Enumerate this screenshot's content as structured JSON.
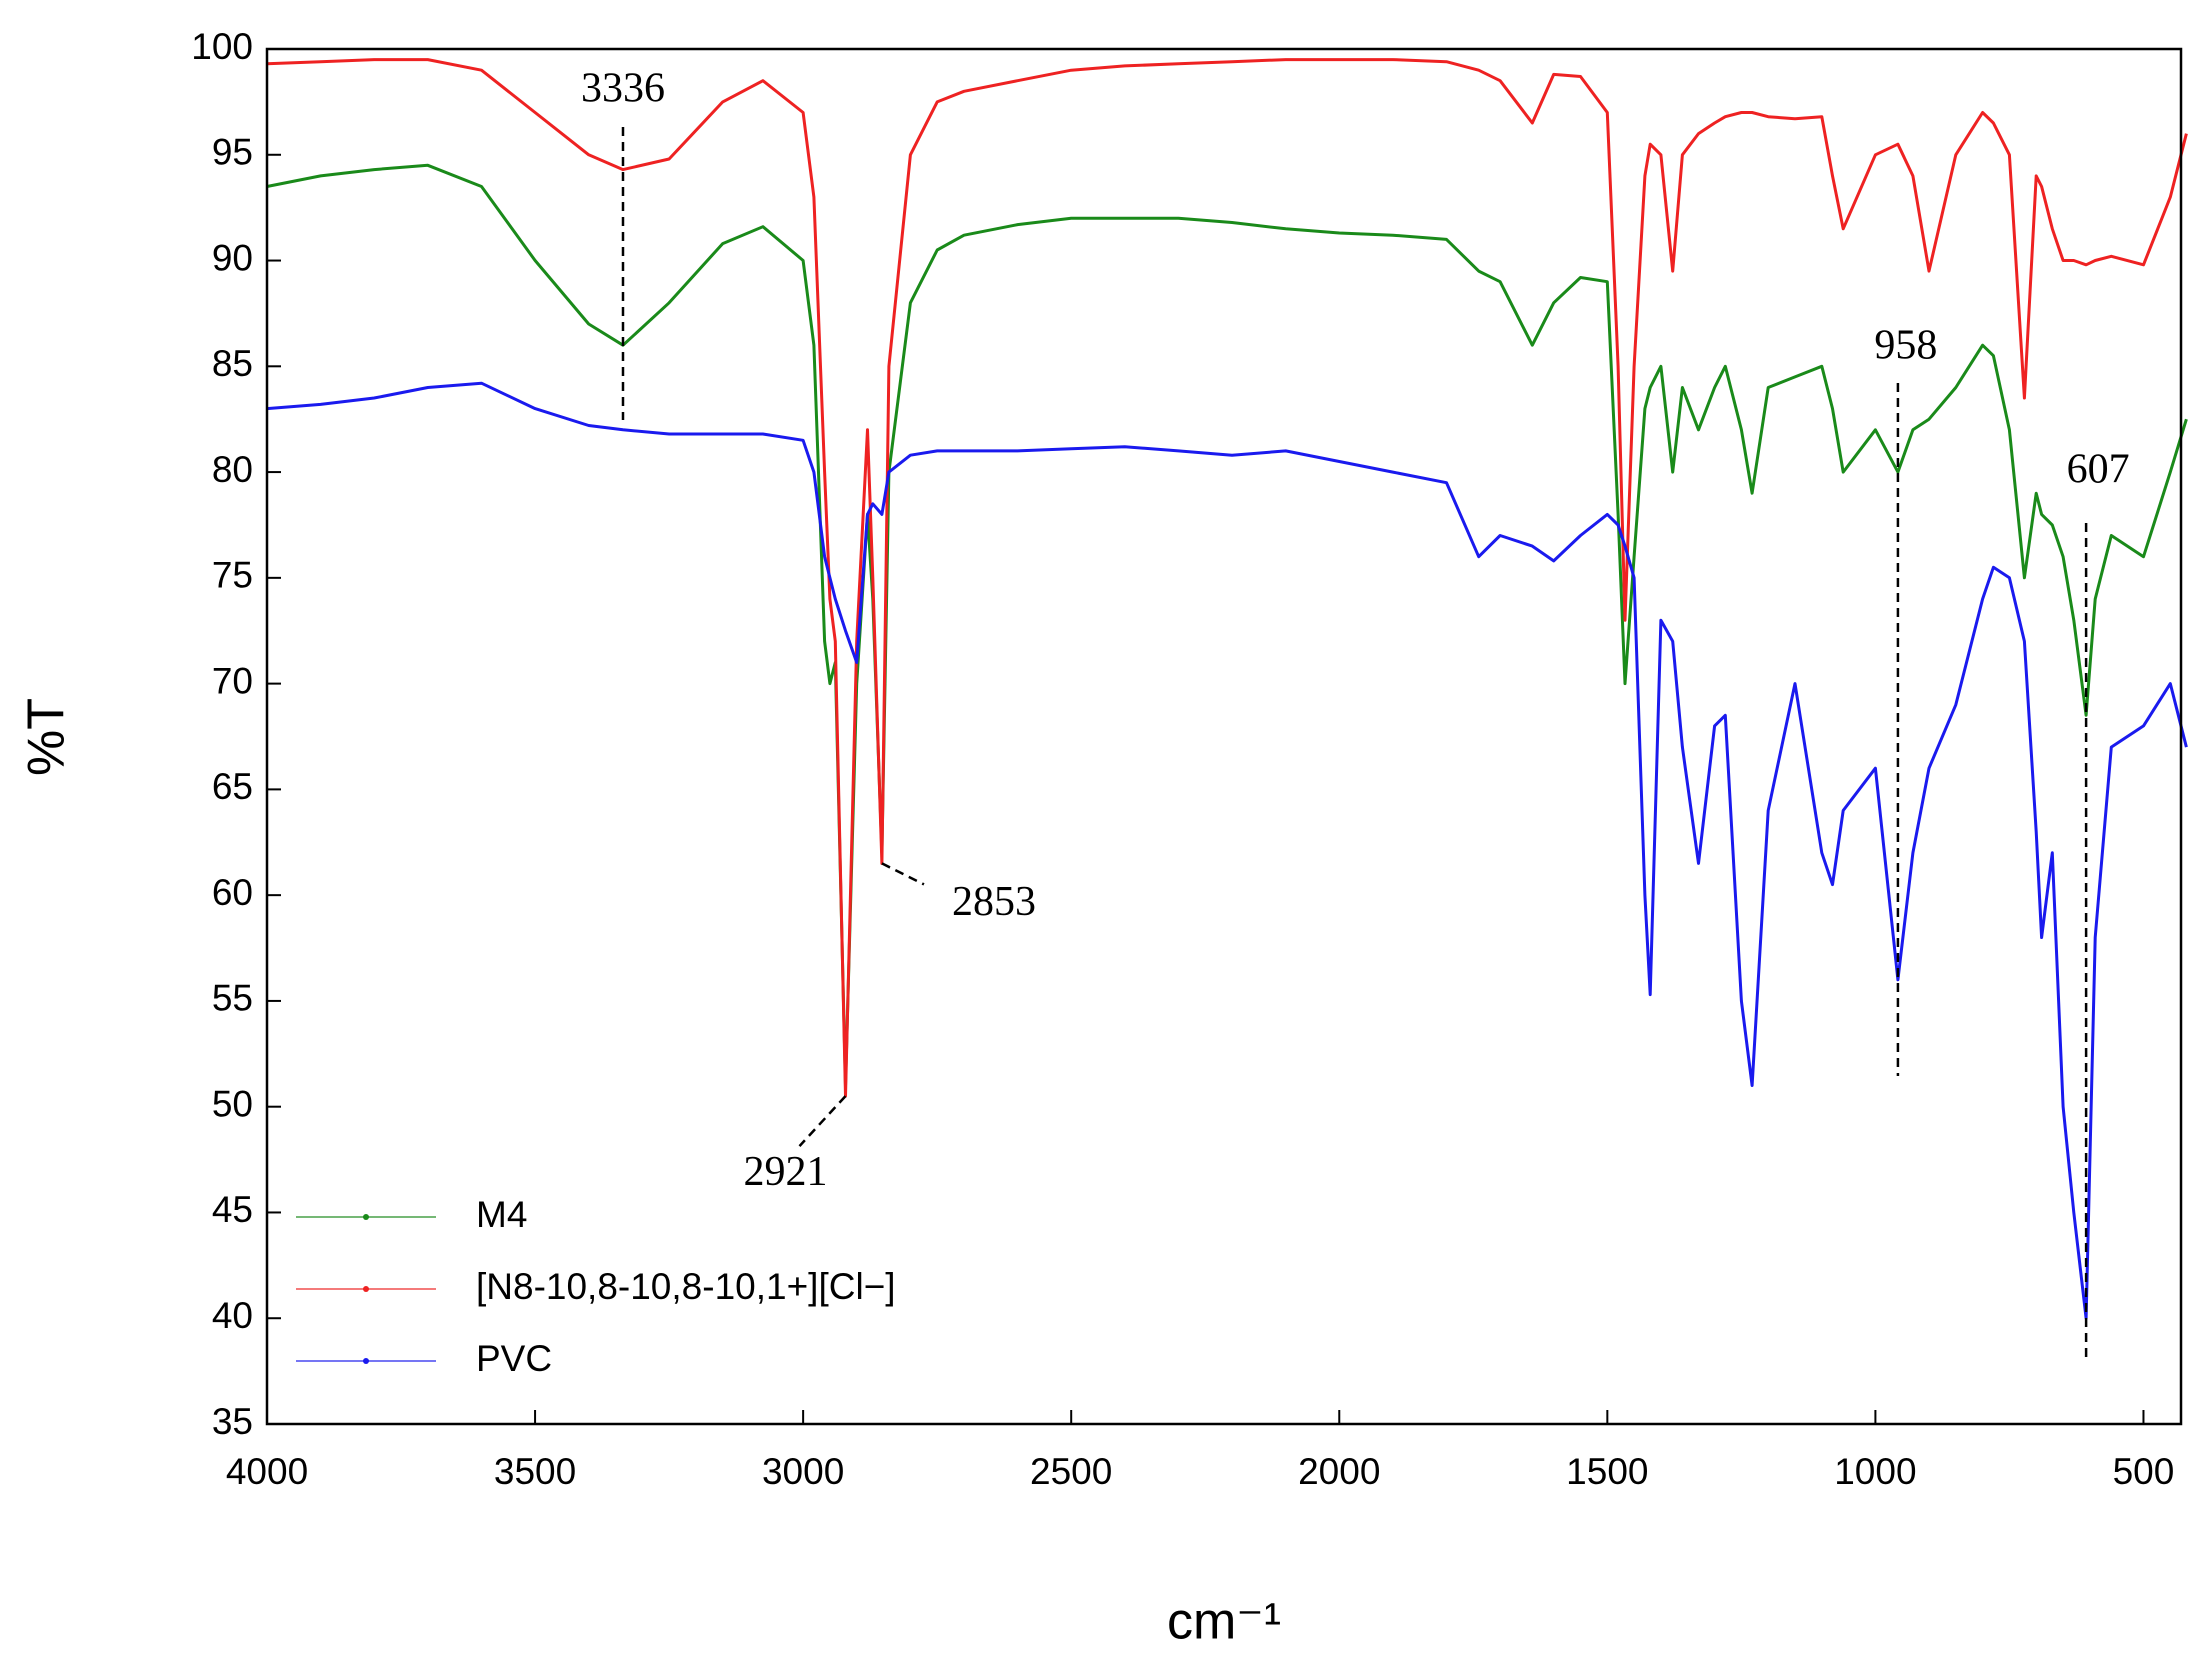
{
  "chart_data": {
    "type": "line",
    "xlabel": "cm⁻¹",
    "ylabel": "%T",
    "xlim": [
      4000,
      430
    ],
    "xticks": [
      4000,
      3500,
      3000,
      2500,
      2000,
      1500,
      1000,
      500
    ],
    "ylim": [
      35,
      100
    ],
    "yticks": [
      35,
      40,
      45,
      50,
      55,
      60,
      65,
      70,
      75,
      80,
      85,
      90,
      95,
      100
    ],
    "legend": "lower left",
    "annotations": [
      3336,
      2921,
      2853,
      958,
      607
    ],
    "x": [
      4000,
      3900,
      3800,
      3700,
      3600,
      3500,
      3400,
      3336,
      3250,
      3150,
      3075,
      3000,
      2980,
      2960,
      2950,
      2940,
      2921,
      2900,
      2880,
      2870,
      2853,
      2840,
      2800,
      2750,
      2700,
      2600,
      2500,
      2400,
      2300,
      2200,
      2100,
      2000,
      1900,
      1800,
      1740,
      1700,
      1640,
      1600,
      1550,
      1500,
      1480,
      1467,
      1450,
      1430,
      1420,
      1400,
      1378,
      1360,
      1330,
      1300,
      1280,
      1250,
      1230,
      1200,
      1150,
      1100,
      1080,
      1060,
      1000,
      958,
      930,
      900,
      850,
      800,
      780,
      750,
      722,
      700,
      690,
      670,
      650,
      630,
      607,
      590,
      560,
      500,
      450,
      420
    ],
    "series": [
      {
        "name": "M4",
        "color": "#1a8a1a",
        "values": [
          93.5,
          94,
          94.3,
          94.5,
          93.5,
          90,
          87,
          86,
          88,
          90.8,
          91.6,
          90,
          86,
          72,
          70,
          71,
          51,
          70,
          78,
          74,
          62,
          80,
          88,
          90.5,
          91.2,
          91.7,
          92,
          92,
          92,
          91.8,
          91.5,
          91.3,
          91.2,
          91,
          89.5,
          89,
          86,
          88,
          89.2,
          89,
          78,
          70,
          76,
          83,
          84,
          85,
          80,
          84,
          82,
          84,
          85,
          82,
          79,
          84,
          84.5,
          85,
          83,
          80,
          82,
          80,
          82,
          82.5,
          84,
          86,
          85.5,
          82,
          75,
          79,
          78,
          77.5,
          76,
          73,
          68.5,
          74,
          77,
          76,
          80,
          82.5
        ]
      },
      {
        "name": "[N8-10,8-10,8-10,1+][Cl−]",
        "color": "#ee2222",
        "values": [
          99.3,
          99.4,
          99.5,
          99.5,
          99,
          97,
          95,
          94.3,
          94.8,
          97.5,
          98.5,
          97,
          93,
          80,
          74,
          72,
          50.5,
          72,
          82,
          75,
          61.5,
          85,
          95,
          97.5,
          98,
          98.5,
          99,
          99.2,
          99.3,
          99.4,
          99.5,
          99.5,
          99.5,
          99.4,
          99,
          98.5,
          96.5,
          98.8,
          98.7,
          97,
          85,
          73,
          85,
          94,
          95.5,
          95,
          89.5,
          95,
          96,
          96.5,
          96.8,
          97,
          97,
          96.8,
          96.7,
          96.8,
          94,
          91.5,
          95,
          95.5,
          94,
          89.5,
          95,
          97,
          96.5,
          95,
          83.5,
          94,
          93.5,
          91.5,
          90,
          90,
          89.8,
          90,
          90.2,
          89.8,
          93,
          96
        ]
      },
      {
        "name": "PVC",
        "color": "#1a1aee",
        "values": [
          83,
          83.2,
          83.5,
          84,
          84.2,
          83,
          82.2,
          82,
          81.8,
          81.8,
          81.8,
          81.5,
          80,
          76,
          75,
          74,
          72.5,
          71,
          78,
          78.5,
          78,
          80,
          80.8,
          81,
          81,
          81,
          81.1,
          81.2,
          81,
          80.8,
          81,
          80.5,
          80,
          79.5,
          76,
          77,
          76.5,
          75.8,
          77,
          78,
          77.5,
          76.5,
          75,
          60,
          55.3,
          73,
          72,
          67,
          61.5,
          68,
          68.5,
          55,
          51,
          64,
          70,
          62,
          60.5,
          64,
          66,
          56,
          62,
          66,
          69,
          74,
          75.5,
          75,
          72,
          63,
          58,
          62,
          50,
          45,
          40,
          58,
          67,
          68,
          70,
          67
        ]
      }
    ]
  }
}
